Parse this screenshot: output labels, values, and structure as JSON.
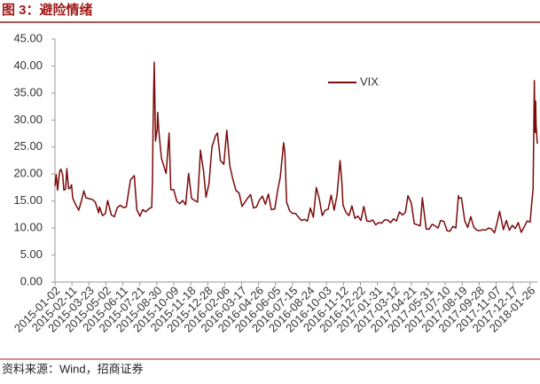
{
  "chart_data": {
    "type": "line",
    "title": "图 3：避险情绪",
    "source": "资料来源：Wind，招商证券",
    "x": [
      "2015-01-02",
      "2015-01-05",
      "2015-01-08",
      "2015-01-13",
      "2015-01-16",
      "2015-01-20",
      "2015-01-23",
      "2015-01-27",
      "2015-01-30",
      "2015-02-03",
      "2015-02-06",
      "2015-02-10",
      "2015-02-13",
      "2015-02-20",
      "2015-02-27",
      "2015-03-06",
      "2015-03-11",
      "2015-03-16",
      "2015-03-25",
      "2015-03-31",
      "2015-04-07",
      "2015-04-15",
      "2015-04-17",
      "2015-04-24",
      "2015-05-01",
      "2015-05-06",
      "2015-05-15",
      "2015-05-22",
      "2015-05-29",
      "2015-06-05",
      "2015-06-12",
      "2015-06-19",
      "2015-06-29",
      "2015-07-08",
      "2015-07-14",
      "2015-07-21",
      "2015-07-28",
      "2015-08-04",
      "2015-08-12",
      "2015-08-18",
      "2015-08-20",
      "2015-08-21",
      "2015-08-24",
      "2015-08-25",
      "2015-08-27",
      "2015-08-31",
      "2015-09-01",
      "2015-09-04",
      "2015-09-10",
      "2015-09-17",
      "2015-09-21",
      "2015-09-28",
      "2015-10-02",
      "2015-10-09",
      "2015-10-16",
      "2015-10-23",
      "2015-10-30",
      "2015-11-06",
      "2015-11-13",
      "2015-11-20",
      "2015-11-27",
      "2015-12-04",
      "2015-12-11",
      "2015-12-14",
      "2015-12-18",
      "2015-12-24",
      "2015-12-31",
      "2016-01-07",
      "2016-01-15",
      "2016-01-20",
      "2016-01-27",
      "2016-02-04",
      "2016-02-11",
      "2016-02-18",
      "2016-02-25",
      "2016-03-04",
      "2016-03-11",
      "2016-03-18",
      "2016-03-28",
      "2016-04-07",
      "2016-04-14",
      "2016-04-21",
      "2016-04-28",
      "2016-05-05",
      "2016-05-12",
      "2016-05-19",
      "2016-05-26",
      "2016-06-03",
      "2016-06-10",
      "2016-06-16",
      "2016-06-24",
      "2016-06-27",
      "2016-07-01",
      "2016-07-08",
      "2016-07-15",
      "2016-07-22",
      "2016-07-29",
      "2016-08-05",
      "2016-08-12",
      "2016-08-19",
      "2016-08-26",
      "2016-09-02",
      "2016-09-09",
      "2016-09-16",
      "2016-09-23",
      "2016-09-30",
      "2016-10-07",
      "2016-10-14",
      "2016-10-21",
      "2016-10-28",
      "2016-11-04",
      "2016-11-08",
      "2016-11-11",
      "2016-11-18",
      "2016-11-25",
      "2016-12-02",
      "2016-12-09",
      "2016-12-16",
      "2016-12-23",
      "2016-12-30",
      "2017-01-06",
      "2017-01-13",
      "2017-01-20",
      "2017-01-27",
      "2017-02-03",
      "2017-02-10",
      "2017-02-17",
      "2017-02-24",
      "2017-03-03",
      "2017-03-10",
      "2017-03-17",
      "2017-03-24",
      "2017-03-31",
      "2017-04-07",
      "2017-04-13",
      "2017-04-21",
      "2017-04-28",
      "2017-05-05",
      "2017-05-12",
      "2017-05-17",
      "2017-05-26",
      "2017-06-02",
      "2017-06-09",
      "2017-06-16",
      "2017-06-23",
      "2017-06-29",
      "2017-07-07",
      "2017-07-14",
      "2017-07-21",
      "2017-07-28",
      "2017-08-04",
      "2017-08-10",
      "2017-08-11",
      "2017-08-17",
      "2017-08-25",
      "2017-09-01",
      "2017-09-08",
      "2017-09-15",
      "2017-09-22",
      "2017-09-29",
      "2017-10-06",
      "2017-10-13",
      "2017-10-20",
      "2017-10-27",
      "2017-11-03",
      "2017-11-10",
      "2017-11-15",
      "2017-11-24",
      "2017-12-01",
      "2017-12-08",
      "2017-12-15",
      "2017-12-22",
      "2017-12-29",
      "2018-01-05",
      "2018-01-12",
      "2018-01-19",
      "2018-01-26",
      "2018-01-30",
      "2018-02-02",
      "2018-02-05",
      "2018-02-06",
      "2018-02-07",
      "2018-02-08",
      "2018-02-09",
      "2018-02-12"
    ],
    "series": [
      {
        "name": "VIX",
        "color": "#7b0a0a",
        "values": [
          17.8,
          19.9,
          17,
          20.5,
          20.9,
          19.9,
          17,
          17.2,
          21,
          17.3,
          17.3,
          18,
          15.5,
          14.3,
          13.3,
          15.2,
          16.9,
          15.6,
          15.4,
          15.3,
          14.8,
          12.8,
          13.9,
          12.3,
          12.7,
          15.1,
          12.4,
          12.1,
          13.8,
          14.2,
          13.8,
          13.9,
          18.9,
          19.7,
          13.4,
          12.2,
          13.4,
          13,
          13.6,
          13.8,
          19.1,
          28,
          40.7,
          36,
          26.1,
          28.4,
          31.4,
          27.8,
          22.9,
          21.1,
          20.1,
          27.6,
          17.1,
          17.1,
          15,
          14.5,
          15.1,
          14.3,
          20.1,
          15.5,
          15.1,
          14.8,
          24.4,
          22.7,
          20.7,
          15.7,
          18.2,
          25,
          27,
          27.6,
          22.5,
          21.8,
          28.1,
          21.6,
          19.1,
          16.9,
          16.5,
          14,
          15.2,
          16.2,
          13.7,
          13.9,
          15.2,
          15.9,
          14.4,
          16.3,
          13.4,
          13.5,
          17,
          19.4,
          25.8,
          23.9,
          14.8,
          13.2,
          12.7,
          12.7,
          12,
          11.4,
          11.6,
          11.3,
          13.7,
          12,
          17.5,
          15.4,
          12.3,
          13.3,
          13.5,
          16.1,
          13.3,
          16.2,
          22.5,
          18.7,
          14.2,
          12.9,
          12.3,
          14.1,
          11.8,
          12.2,
          11.4,
          14,
          11.3,
          11.2,
          11.5,
          10.6,
          11,
          10.9,
          11.5,
          11.5,
          11,
          11.7,
          11.3,
          13,
          12.4,
          12.9,
          16,
          14.6,
          10.8,
          10.6,
          10.4,
          15.6,
          9.8,
          9.8,
          10.7,
          10.4,
          10,
          11.4,
          11.2,
          9.5,
          9.4,
          10.3,
          10,
          16,
          15.5,
          15.6,
          11.3,
          10.1,
          12.1,
          10.2,
          9.6,
          9.5,
          9.7,
          9.6,
          10,
          9.8,
          9.1,
          11.3,
          13.1,
          9.7,
          11.4,
          9.6,
          10.5,
          9.9,
          11,
          9.2,
          10.2,
          11.3,
          11.1,
          14.8,
          17.3,
          37.3,
          30,
          27.7,
          33.5,
          29.1,
          25.6
        ]
      }
    ],
    "xlim": [
      "2015-01-02",
      "2018-02-12"
    ],
    "xticks": [
      "2015-01-02",
      "2015-02-11",
      "2015-03-23",
      "2015-05-02",
      "2015-06-11",
      "2015-07-21",
      "2015-08-30",
      "2015-10-09",
      "2015-11-18",
      "2015-12-28",
      "2016-02-06",
      "2016-03-17",
      "2016-04-26",
      "2016-06-05",
      "2016-07-15",
      "2016-08-24",
      "2016-10-03",
      "2016-11-12",
      "2016-12-22",
      "2017-01-31",
      "2017-03-12",
      "2017-04-21",
      "2017-05-31",
      "2017-07-10",
      "2017-08-19",
      "2017-09-28",
      "2017-11-07",
      "2017-12-17",
      "2018-01-26"
    ],
    "ylim": [
      0,
      45
    ],
    "yticks": [
      {
        "value": 0,
        "label": "0.00"
      },
      {
        "value": 5,
        "label": "5.00"
      },
      {
        "value": 10,
        "label": "10.00"
      },
      {
        "value": 15,
        "label": "15.00"
      },
      {
        "value": 20,
        "label": "20.00"
      },
      {
        "value": 25,
        "label": "25.00"
      },
      {
        "value": 30,
        "label": "30.00"
      },
      {
        "value": 35,
        "label": "35.00"
      },
      {
        "value": 40,
        "label": "40.00"
      },
      {
        "value": 45,
        "label": "45.00"
      }
    ],
    "legend": "upper-center"
  }
}
